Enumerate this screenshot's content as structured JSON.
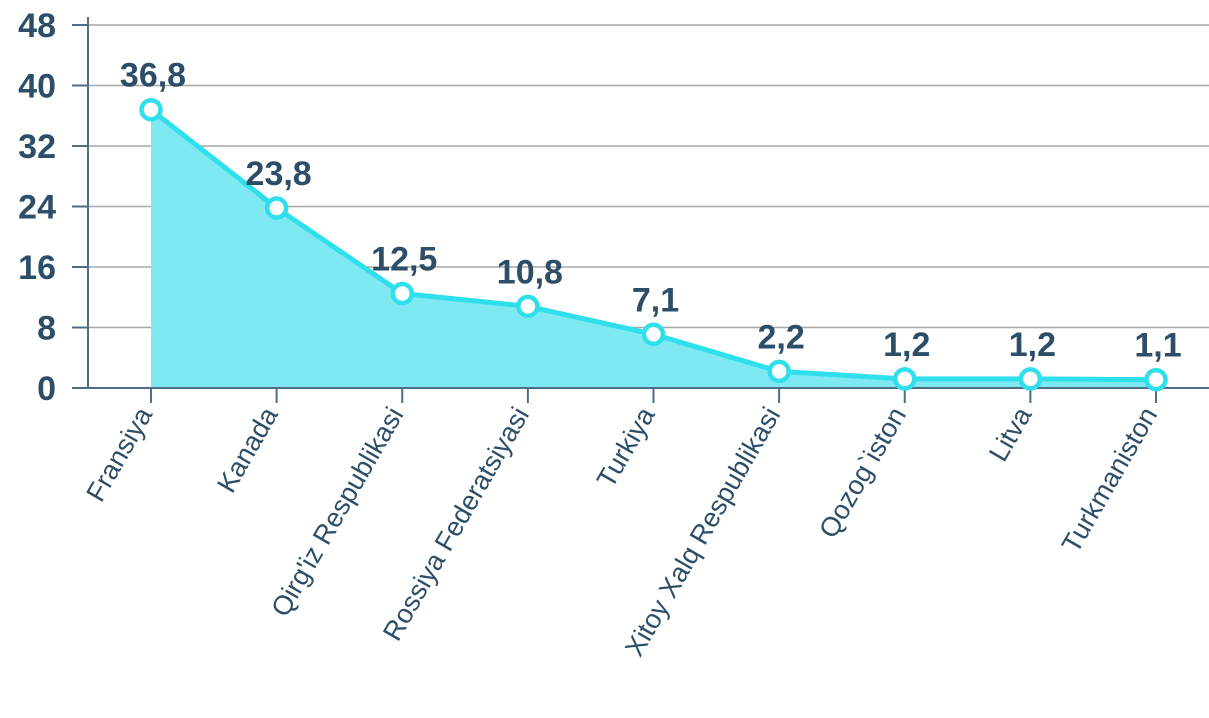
{
  "chart_data": {
    "type": "area",
    "categories": [
      "Fransiya",
      "Kanada",
      "Qirg'iz Respublikasi",
      "Rossiya Federatsiyasi",
      "Turkiya",
      "Xitoy Xalq Respublikasi",
      "Qozog`iston",
      "Litva",
      "Turkmaniston"
    ],
    "values": [
      36.8,
      23.8,
      12.5,
      10.8,
      7.1,
      2.2,
      1.2,
      1.2,
      1.1
    ],
    "value_labels": [
      "36,8",
      "23,8",
      "12,5",
      "10,8",
      "7,1",
      "2,2",
      "1,2",
      "1,2",
      "1,1"
    ],
    "yticks": [
      "0",
      "8",
      "16",
      "24",
      "32",
      "40",
      "48"
    ],
    "ylim": [
      0,
      48
    ],
    "grid": true,
    "legend": "none",
    "colors": {
      "line": "#2fdfec",
      "fill": "#7ee9f2",
      "marker_fill": "#ffffff",
      "text": "#2c4e68",
      "axis": "#4f6e86",
      "grid": "#a6a6a6"
    }
  }
}
